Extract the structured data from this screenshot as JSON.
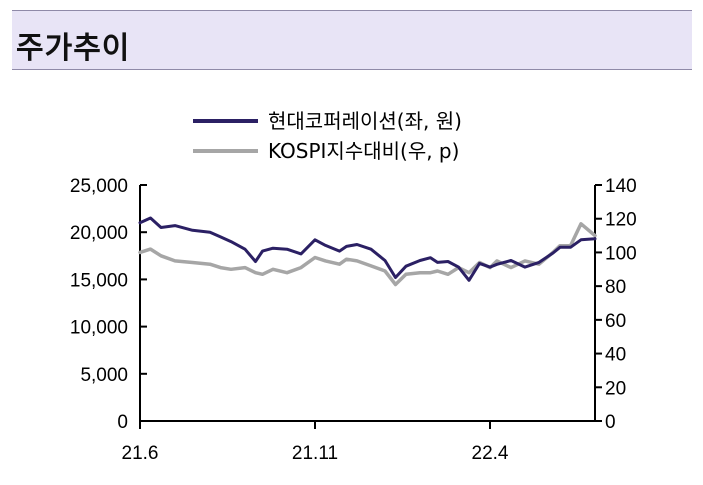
{
  "header": {
    "title": "주가추이"
  },
  "chart_data": {
    "type": "line",
    "title": "",
    "xlabel": "",
    "ylabel": "",
    "x_ticks": [
      "21.6",
      "21.11",
      "22.4"
    ],
    "y_left": {
      "min": 0,
      "max": 25000,
      "ticks": [
        "0",
        "5,000",
        "10,000",
        "15,000",
        "20,000",
        "25,000"
      ]
    },
    "y_right": {
      "min": 0,
      "max": 140,
      "ticks": [
        "0",
        "20",
        "40",
        "60",
        "80",
        "100",
        "120",
        "140"
      ]
    },
    "legend_position": "top-center",
    "grid": false,
    "series": [
      {
        "name": "현대코퍼레이션(좌, 원)",
        "axis": "left",
        "color": "#2b2064",
        "note_x_units": "months from 21.6",
        "x": [
          0,
          0.3,
          0.6,
          1.0,
          1.5,
          2.0,
          2.3,
          2.6,
          3.0,
          3.3,
          3.5,
          3.8,
          4.2,
          4.6,
          5.0,
          5.3,
          5.7,
          5.9,
          6.2,
          6.6,
          7.0,
          7.3,
          7.6,
          8.0,
          8.3,
          8.5,
          8.8,
          9.1,
          9.4,
          9.7,
          10.0,
          10.2,
          10.6,
          11.0,
          11.4,
          11.8,
          12.0,
          12.3,
          12.6,
          13.0
        ],
        "values": [
          21000,
          21500,
          20500,
          20700,
          20200,
          20000,
          19500,
          19000,
          18200,
          16900,
          18000,
          18300,
          18200,
          17700,
          19200,
          18600,
          18000,
          18500,
          18700,
          18200,
          17000,
          15200,
          16400,
          17000,
          17300,
          16800,
          16900,
          16300,
          14900,
          16700,
          16300,
          16600,
          17000,
          16300,
          16800,
          17800,
          18400,
          18400,
          19200,
          19300
        ]
      },
      {
        "name": "KOSPI지수대비(우, p)",
        "axis": "right",
        "color": "#a6a6a6",
        "x": [
          0,
          0.3,
          0.6,
          1.0,
          1.5,
          2.0,
          2.3,
          2.6,
          3.0,
          3.3,
          3.5,
          3.8,
          4.2,
          4.6,
          5.0,
          5.3,
          5.7,
          5.9,
          6.2,
          6.6,
          7.0,
          7.3,
          7.6,
          8.0,
          8.3,
          8.5,
          8.8,
          9.1,
          9.4,
          9.7,
          10.0,
          10.2,
          10.6,
          11.0,
          11.4,
          11.8,
          12.0,
          12.3,
          12.6,
          13.0
        ],
        "values": [
          100,
          102,
          98,
          95,
          94,
          93,
          91,
          90,
          91,
          88,
          87,
          90,
          88,
          91,
          97,
          95,
          93,
          96,
          95,
          92,
          89,
          81,
          87,
          88,
          88,
          89,
          87,
          91,
          88,
          94,
          91,
          95,
          91,
          95,
          93,
          100,
          104,
          104,
          117,
          110
        ]
      }
    ]
  }
}
